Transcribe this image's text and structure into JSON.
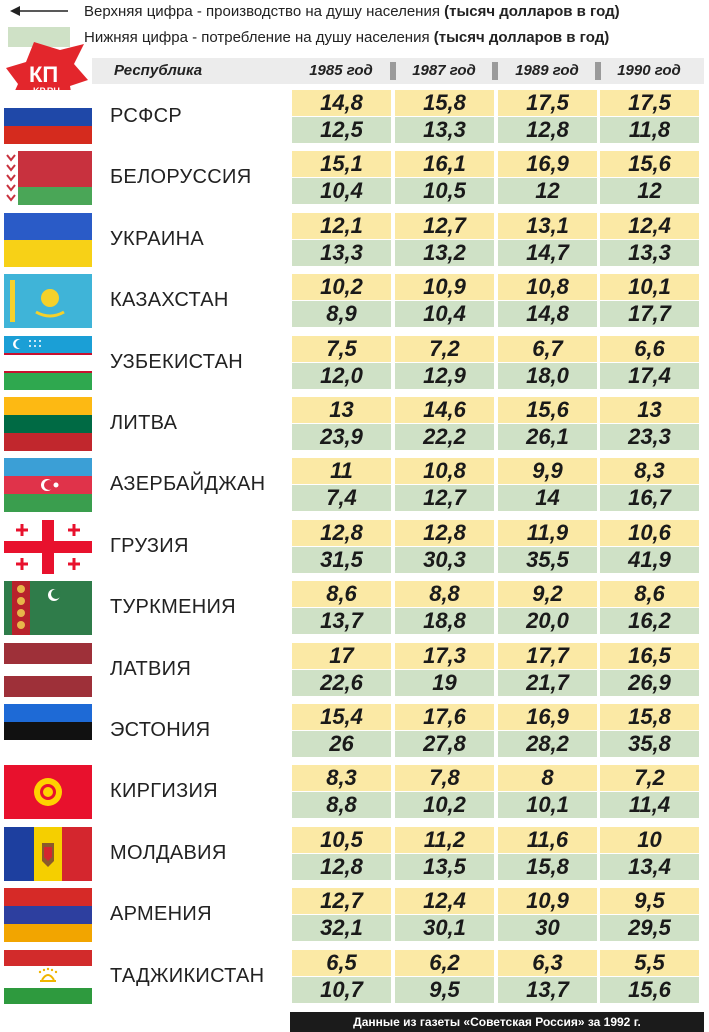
{
  "legend": {
    "production_text": "Верхняя цифра - производство на душу населения ",
    "production_bold": "(тысяч долларов в год)",
    "consumption_text": "Нижняя цифра - потребление на душу населения ",
    "consumption_bold": "(тысяч долларов в год)"
  },
  "logo": {
    "line1": "КП",
    "line2": "KP.RU"
  },
  "header": {
    "republic": "Республика",
    "years": [
      "1985 год",
      "1987 год",
      "1989 год",
      "1990 год"
    ]
  },
  "rows": [
    {
      "name": "РСФСР",
      "prod": [
        "14,8",
        "15,8",
        "17,5",
        "17,5"
      ],
      "cons": [
        "12,5",
        "13,3",
        "12,8",
        "11,8"
      ]
    },
    {
      "name": "БЕЛОРУССИЯ",
      "prod": [
        "15,1",
        "16,1",
        "16,9",
        "15,6"
      ],
      "cons": [
        "10,4",
        "10,5",
        "12",
        "12"
      ]
    },
    {
      "name": "УКРАИНА",
      "prod": [
        "12,1",
        "12,7",
        "13,1",
        "12,4"
      ],
      "cons": [
        "13,3",
        "13,2",
        "14,7",
        "13,3"
      ]
    },
    {
      "name": "КАЗАХСТАН",
      "prod": [
        "10,2",
        "10,9",
        "10,8",
        "10,1"
      ],
      "cons": [
        "8,9",
        "10,4",
        "14,8",
        "17,7"
      ]
    },
    {
      "name": "УЗБЕКИСТАН",
      "prod": [
        "7,5",
        "7,2",
        "6,7",
        "6,6"
      ],
      "cons": [
        "12,0",
        "12,9",
        "18,0",
        "17,4"
      ]
    },
    {
      "name": "ЛИТВА",
      "prod": [
        "13",
        "14,6",
        "15,6",
        "13"
      ],
      "cons": [
        "23,9",
        "22,2",
        "26,1",
        "23,3"
      ]
    },
    {
      "name": "АЗЕРБАЙДЖАН",
      "prod": [
        "11",
        "10,8",
        "9,9",
        "8,3"
      ],
      "cons": [
        "7,4",
        "12,7",
        "14",
        "16,7"
      ]
    },
    {
      "name": "ГРУЗИЯ",
      "prod": [
        "12,8",
        "12,8",
        "11,9",
        "10,6"
      ],
      "cons": [
        "31,5",
        "30,3",
        "35,5",
        "41,9"
      ]
    },
    {
      "name": "ТУРКМЕНИЯ",
      "prod": [
        "8,6",
        "8,8",
        "9,2",
        "8,6"
      ],
      "cons": [
        "13,7",
        "18,8",
        "20,0",
        "16,2"
      ]
    },
    {
      "name": "ЛАТВИЯ",
      "prod": [
        "17",
        "17,3",
        "17,7",
        "16,5"
      ],
      "cons": [
        "22,6",
        "19",
        "21,7",
        "26,9"
      ]
    },
    {
      "name": "ЭСТОНИЯ",
      "prod": [
        "15,4",
        "17,6",
        "16,9",
        "15,8"
      ],
      "cons": [
        "26",
        "27,8",
        "28,2",
        "35,8"
      ]
    },
    {
      "name": "КИРГИЗИЯ",
      "prod": [
        "8,3",
        "7,8",
        "8",
        "7,2"
      ],
      "cons": [
        "8,8",
        "10,2",
        "10,1",
        "11,4"
      ]
    },
    {
      "name": "МОЛДАВИЯ",
      "prod": [
        "10,5",
        "11,2",
        "11,6",
        "10"
      ],
      "cons": [
        "12,8",
        "13,5",
        "15,8",
        "13,4"
      ]
    },
    {
      "name": "АРМЕНИЯ",
      "prod": [
        "12,7",
        "12,4",
        "10,9",
        "9,5"
      ],
      "cons": [
        "32,1",
        "30,1",
        "30",
        "29,5"
      ]
    },
    {
      "name": "ТАДЖИКИСТАН",
      "prod": [
        "6,5",
        "6,2",
        "6,3",
        "5,5"
      ],
      "cons": [
        "10,7",
        "9,5",
        "13,7",
        "15,6"
      ]
    }
  ],
  "footer": "Данные из газеты «Советская Россия» за 1992 г."
}
